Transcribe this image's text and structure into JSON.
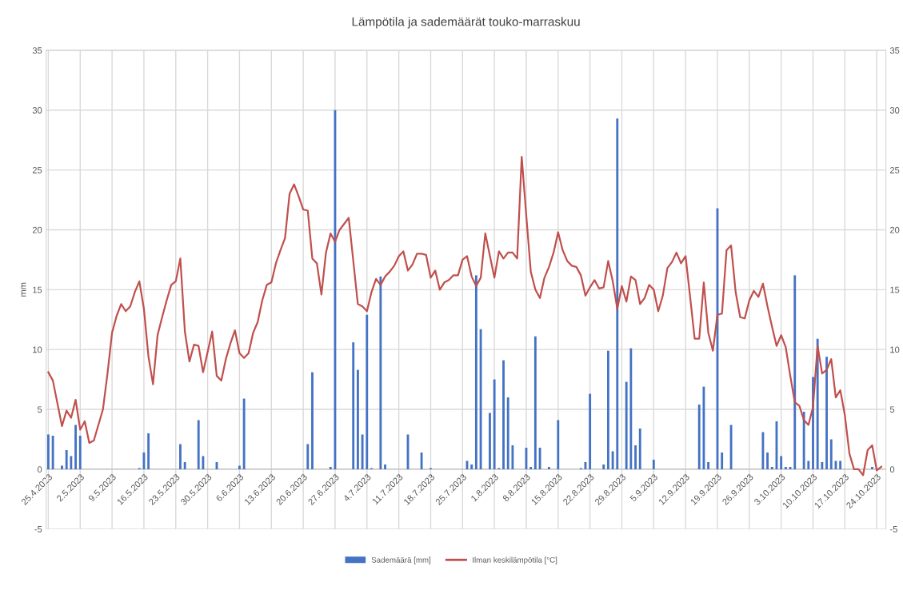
{
  "chart_data": {
    "type": "bar",
    "title": "Lämpötila ja sademäärät touko-marraskuu",
    "ylabel": "mm",
    "xlim": [
      "2023-04-24T12:00",
      "2023-10-26T00:00"
    ],
    "xticks": [
      {
        "value": "2023-04-25",
        "label": "25.4.2023"
      },
      {
        "value": "2023-05-02",
        "label": "2.5.2023"
      },
      {
        "value": "2023-05-09",
        "label": "9.5.2023"
      },
      {
        "value": "2023-05-16",
        "label": "16.5.2023"
      },
      {
        "value": "2023-05-23",
        "label": "23.5.2023"
      },
      {
        "value": "2023-05-30",
        "label": "30.5.2023"
      },
      {
        "value": "2023-06-06",
        "label": "6.6.2023"
      },
      {
        "value": "2023-06-13",
        "label": "13.6.2023"
      },
      {
        "value": "2023-06-20",
        "label": "20.6.2023"
      },
      {
        "value": "2023-06-27",
        "label": "27.6.2023"
      },
      {
        "value": "2023-07-04",
        "label": "4.7.2023"
      },
      {
        "value": "2023-07-11",
        "label": "11.7.2023"
      },
      {
        "value": "2023-07-18",
        "label": "18.7.2023"
      },
      {
        "value": "2023-07-25",
        "label": "25.7.2023"
      },
      {
        "value": "2023-08-01",
        "label": "1.8.2023"
      },
      {
        "value": "2023-08-08",
        "label": "8.8.2023"
      },
      {
        "value": "2023-08-15",
        "label": "15.8.2023"
      },
      {
        "value": "2023-08-22",
        "label": "22.8.2023"
      },
      {
        "value": "2023-08-29",
        "label": "29.8.2023"
      },
      {
        "value": "2023-09-05",
        "label": "5.9.2023"
      },
      {
        "value": "2023-09-12",
        "label": "12.9.2023"
      },
      {
        "value": "2023-09-19",
        "label": "19.9.2023"
      },
      {
        "value": "2023-09-26",
        "label": "26.9.2023"
      },
      {
        "value": "2023-10-03",
        "label": "3.10.2023"
      },
      {
        "value": "2023-10-10",
        "label": "10.10.2023"
      },
      {
        "value": "2023-10-17",
        "label": "17.10.2023"
      },
      {
        "value": "2023-10-24",
        "label": "24.10.2023"
      }
    ],
    "ylim": [
      -5,
      35
    ],
    "yticks": [
      -5,
      0,
      5,
      10,
      15,
      20,
      25,
      30,
      35
    ],
    "y2lim": [
      -5,
      35
    ],
    "y2ticks": [
      -5,
      0,
      5,
      10,
      15,
      20,
      25,
      30,
      35
    ],
    "grid": true,
    "legend": "bottom",
    "series": [
      {
        "name": "Sademäärä [mm]",
        "color": "#4472c4",
        "x": [
          "2023-04-25",
          "2023-04-26",
          "2023-04-28",
          "2023-04-29",
          "2023-04-30",
          "2023-05-01",
          "2023-05-02",
          "2023-05-15",
          "2023-05-16",
          "2023-05-17",
          "2023-05-24",
          "2023-05-25",
          "2023-05-28",
          "2023-05-29",
          "2023-06-01",
          "2023-06-06",
          "2023-06-07",
          "2023-06-21",
          "2023-06-22",
          "2023-06-26",
          "2023-06-27",
          "2023-07-01",
          "2023-07-02",
          "2023-07-03",
          "2023-07-04",
          "2023-07-05",
          "2023-07-07",
          "2023-07-08",
          "2023-07-13",
          "2023-07-16",
          "2023-07-18",
          "2023-07-26",
          "2023-07-27",
          "2023-07-28",
          "2023-07-29",
          "2023-07-31",
          "2023-08-01",
          "2023-08-02",
          "2023-08-03",
          "2023-08-04",
          "2023-08-05",
          "2023-08-08",
          "2023-08-09",
          "2023-08-10",
          "2023-08-11",
          "2023-08-13",
          "2023-08-15",
          "2023-08-20",
          "2023-08-21",
          "2023-08-22",
          "2023-08-25",
          "2023-08-26",
          "2023-08-27",
          "2023-08-28",
          "2023-08-30",
          "2023-08-31",
          "2023-09-01",
          "2023-09-02",
          "2023-09-05",
          "2023-09-15",
          "2023-09-16",
          "2023-09-17",
          "2023-09-19",
          "2023-09-20",
          "2023-09-22",
          "2023-09-29",
          "2023-09-30",
          "2023-10-01",
          "2023-10-02",
          "2023-10-03",
          "2023-10-04",
          "2023-10-05",
          "2023-10-06",
          "2023-10-08",
          "2023-10-09",
          "2023-10-10",
          "2023-10-11",
          "2023-10-12",
          "2023-10-13",
          "2023-10-14",
          "2023-10-15",
          "2023-10-16",
          "2023-10-23"
        ],
        "values": [
          2.9,
          2.8,
          0.3,
          1.6,
          1.1,
          3.7,
          2.8,
          0.1,
          1.4,
          3.0,
          2.1,
          0.6,
          4.1,
          1.1,
          0.6,
          0.3,
          5.9,
          2.1,
          8.1,
          0.2,
          30.0,
          10.6,
          8.3,
          2.9,
          12.9,
          0.1,
          16.1,
          0.4,
          2.9,
          1.4,
          0.1,
          0.7,
          0.4,
          16.2,
          11.7,
          4.7,
          7.5,
          0.1,
          9.1,
          6.0,
          2.0,
          1.8,
          0.2,
          11.1,
          1.8,
          0.2,
          4.1,
          0.1,
          0.6,
          6.3,
          0.4,
          9.9,
          1.5,
          29.3,
          7.3,
          10.1,
          2.0,
          3.4,
          0.8,
          5.4,
          6.9,
          0.6,
          21.8,
          1.4,
          3.7,
          3.1,
          1.4,
          0.2,
          4.0,
          1.1,
          0.2,
          0.2,
          16.2,
          4.8,
          0.7,
          7.7,
          10.9,
          0.6,
          9.4,
          2.5,
          0.7,
          0.7,
          0.2
        ]
      },
      {
        "name": "Ilman keskilämpötila [°C]",
        "type": "line",
        "color": "#c0504d",
        "x": [
          "2023-04-25",
          "2023-04-26",
          "2023-04-28",
          "2023-04-29",
          "2023-04-30",
          "2023-05-01",
          "2023-05-02",
          "2023-05-03",
          "2023-05-04",
          "2023-05-05",
          "2023-05-07",
          "2023-05-08",
          "2023-05-09",
          "2023-05-10",
          "2023-05-11",
          "2023-05-12",
          "2023-05-13",
          "2023-05-14",
          "2023-05-15",
          "2023-05-16",
          "2023-05-17",
          "2023-05-18",
          "2023-05-19",
          "2023-05-20",
          "2023-05-21",
          "2023-05-22",
          "2023-05-23",
          "2023-05-24",
          "2023-05-25",
          "2023-05-26",
          "2023-05-27",
          "2023-05-28",
          "2023-05-29",
          "2023-05-30",
          "2023-05-31",
          "2023-06-01",
          "2023-06-02",
          "2023-06-03",
          "2023-06-04",
          "2023-06-05",
          "2023-06-06",
          "2023-06-07",
          "2023-06-08",
          "2023-06-09",
          "2023-06-10",
          "2023-06-11",
          "2023-06-12",
          "2023-06-13",
          "2023-06-14",
          "2023-06-15",
          "2023-06-16",
          "2023-06-17",
          "2023-06-18",
          "2023-06-19",
          "2023-06-20",
          "2023-06-21",
          "2023-06-22",
          "2023-06-23",
          "2023-06-24",
          "2023-06-25",
          "2023-06-26",
          "2023-06-27",
          "2023-06-28",
          "2023-06-30",
          "2023-07-02",
          "2023-07-03",
          "2023-07-04",
          "2023-07-05",
          "2023-07-06",
          "2023-07-07",
          "2023-07-08",
          "2023-07-09",
          "2023-07-10",
          "2023-07-11",
          "2023-07-12",
          "2023-07-13",
          "2023-07-14",
          "2023-07-15",
          "2023-07-16",
          "2023-07-17",
          "2023-07-18",
          "2023-07-19",
          "2023-07-20",
          "2023-07-21",
          "2023-07-22",
          "2023-07-23",
          "2023-07-24",
          "2023-07-25",
          "2023-07-26",
          "2023-07-27",
          "2023-07-28",
          "2023-07-29",
          "2023-07-30",
          "2023-08-01",
          "2023-08-02",
          "2023-08-03",
          "2023-08-04",
          "2023-08-05",
          "2023-08-06",
          "2023-08-07",
          "2023-08-08",
          "2023-08-09",
          "2023-08-10",
          "2023-08-11",
          "2023-08-12",
          "2023-08-13",
          "2023-08-14",
          "2023-08-15",
          "2023-08-16",
          "2023-08-17",
          "2023-08-18",
          "2023-08-19",
          "2023-08-20",
          "2023-08-21",
          "2023-08-22",
          "2023-08-23",
          "2023-08-24",
          "2023-08-25",
          "2023-08-26",
          "2023-08-27",
          "2023-08-28",
          "2023-08-29",
          "2023-08-30",
          "2023-08-31",
          "2023-09-01",
          "2023-09-02",
          "2023-09-03",
          "2023-09-04",
          "2023-09-05",
          "2023-09-06",
          "2023-09-07",
          "2023-09-08",
          "2023-09-09",
          "2023-09-10",
          "2023-09-11",
          "2023-09-12",
          "2023-09-13",
          "2023-09-14",
          "2023-09-15",
          "2023-09-16",
          "2023-09-17",
          "2023-09-18",
          "2023-09-19",
          "2023-09-20",
          "2023-09-21",
          "2023-09-22",
          "2023-09-23",
          "2023-09-24",
          "2023-09-25",
          "2023-09-26",
          "2023-09-27",
          "2023-09-28",
          "2023-09-29",
          "2023-09-30",
          "2023-10-01",
          "2023-10-02",
          "2023-10-03",
          "2023-10-04",
          "2023-10-05",
          "2023-10-06",
          "2023-10-07",
          "2023-10-08",
          "2023-10-09",
          "2023-10-10",
          "2023-10-11",
          "2023-10-12",
          "2023-10-13",
          "2023-10-14",
          "2023-10-15",
          "2023-10-16",
          "2023-10-17",
          "2023-10-18",
          "2023-10-19",
          "2023-10-20",
          "2023-10-21",
          "2023-10-22",
          "2023-10-23",
          "2023-10-24",
          "2023-10-25"
        ],
        "values": [
          8.1,
          7.4,
          3.6,
          4.9,
          4.3,
          5.8,
          3.3,
          4.0,
          2.2,
          2.4,
          5.0,
          8.0,
          11.4,
          12.8,
          13.8,
          13.2,
          13.6,
          14.8,
          15.7,
          13.4,
          9.4,
          7.1,
          11.2,
          12.7,
          14.1,
          15.4,
          15.7,
          17.6,
          11.5,
          9.0,
          10.4,
          10.3,
          8.1,
          9.8,
          11.5,
          7.8,
          7.4,
          9.2,
          10.5,
          11.6,
          9.7,
          9.3,
          9.7,
          11.4,
          12.3,
          14.1,
          15.4,
          15.6,
          17.2,
          18.3,
          19.3,
          23.0,
          23.8,
          22.8,
          21.7,
          21.6,
          17.6,
          17.2,
          14.6,
          18.1,
          19.7,
          19.0,
          20.0,
          21.0,
          13.8,
          13.6,
          13.2,
          14.8,
          15.9,
          15.4,
          16.1,
          16.5,
          17.0,
          17.8,
          18.2,
          16.6,
          17.1,
          18.0,
          18.0,
          17.9,
          16.0,
          16.6,
          15.0,
          15.6,
          15.8,
          16.2,
          16.2,
          17.5,
          17.8,
          16.1,
          15.3,
          16.0,
          19.7,
          16.0,
          18.2,
          17.6,
          18.1,
          18.1,
          17.6,
          26.1,
          21.2,
          16.5,
          15.0,
          14.3,
          16.0,
          16.9,
          18.1,
          19.8,
          18.3,
          17.4,
          17.0,
          16.9,
          16.2,
          14.5,
          15.2,
          15.8,
          15.1,
          15.2,
          17.4,
          15.7,
          13.4,
          15.3,
          14.0,
          16.1,
          15.8,
          13.8,
          14.3,
          15.4,
          15.0,
          13.2,
          14.5,
          16.8,
          17.3,
          18.1,
          17.2,
          17.8,
          14.4,
          10.9,
          10.9,
          15.6,
          11.4,
          9.9,
          12.9,
          13.0,
          18.3,
          18.7,
          14.8,
          12.7,
          12.6,
          14.1,
          14.9,
          14.4,
          15.5,
          13.6,
          11.9,
          10.3,
          11.2,
          10.2,
          7.8,
          5.6,
          5.3,
          4.1,
          3.7,
          5.2,
          10.3,
          8.0,
          8.3,
          9.2,
          6.0,
          6.6,
          4.5,
          1.3,
          0.0,
          0.0,
          -0.5,
          1.6,
          2.0,
          -0.1,
          0.2
        ]
      }
    ]
  }
}
